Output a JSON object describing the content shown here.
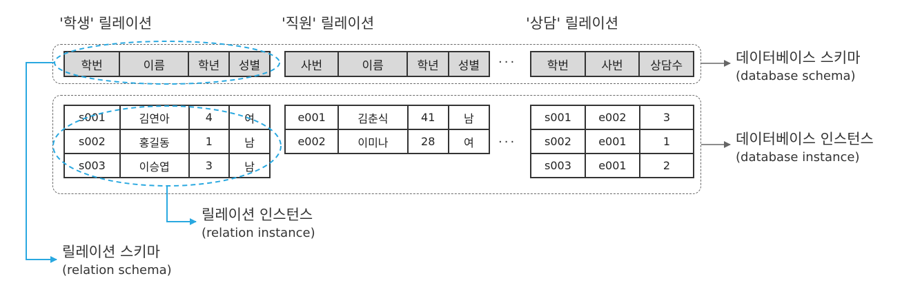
{
  "relation_titles": [
    "'학생' 릴레이션",
    "'직원' 릴레이션",
    "'상담' 릴레이션"
  ],
  "student": {
    "headers": [
      "학번",
      "이름",
      "학년",
      "성별"
    ],
    "rows": [
      [
        "s001",
        "김연아",
        "4",
        "여"
      ],
      [
        "s002",
        "홍길동",
        "1",
        "남"
      ],
      [
        "s003",
        "이승엽",
        "3",
        "남"
      ]
    ]
  },
  "employee": {
    "headers": [
      "사번",
      "이름",
      "학년",
      "성별"
    ],
    "rows": [
      [
        "e001",
        "김춘식",
        "41",
        "남"
      ],
      [
        "e002",
        "이미나",
        "28",
        "여"
      ]
    ]
  },
  "counsel": {
    "headers": [
      "학번",
      "사번",
      "상담수"
    ],
    "rows": [
      [
        "s001",
        "e002",
        "3"
      ],
      [
        "s002",
        "e001",
        "1"
      ],
      [
        "s003",
        "e001",
        "2"
      ]
    ]
  },
  "ellipsis": "···",
  "labels": {
    "database_schema": {
      "ko": "데이터베이스 스키마",
      "en": "(database schema)"
    },
    "database_instance": {
      "ko": "데이터베이스 인스턴스",
      "en": "(database instance)"
    },
    "relation_instance": {
      "ko": "릴레이션 인스턴스",
      "en": "(relation instance)"
    },
    "relation_schema": {
      "ko": "릴레이션 스키마",
      "en": "(relation schema)"
    }
  },
  "colors": {
    "connector": "#29a8e0",
    "border": "#333333",
    "header_fill": "#d9d9d9",
    "dashed": "#666666"
  }
}
